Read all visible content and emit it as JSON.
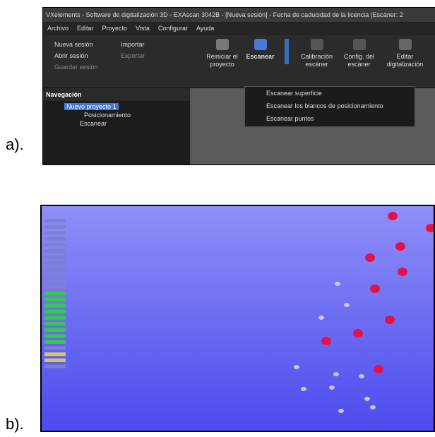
{
  "labels": {
    "a": "a).",
    "b": "b)."
  },
  "window": {
    "title": "VXelements - Software de digitalización 3D - EXAscan 3042B - [Nueva sesión] - Fecha de caducidad de la licencia (Escáner: 2",
    "menu": [
      "Archivo",
      "Editar",
      "Proyecto",
      "Vista",
      "Configurar",
      "Ayuda"
    ],
    "session": [
      "Nueva sesión",
      "Abrir sesión",
      "Guardar sesión"
    ],
    "io": [
      "Importar",
      "Exportar"
    ],
    "buttons": [
      "Reiniciar el proyecto",
      "Escanear",
      "Calibración escáner",
      "Config. del escáner",
      "Editar digitalización"
    ],
    "navigation": {
      "title": "Navegación",
      "items": [
        "Nuevo proyecto 1",
        "Posicionamiento",
        "Escanear"
      ]
    },
    "dropdown": [
      "Escanear superficie",
      "Escanear los blancos de posicionamiento",
      "Escanear puntos"
    ]
  }
}
